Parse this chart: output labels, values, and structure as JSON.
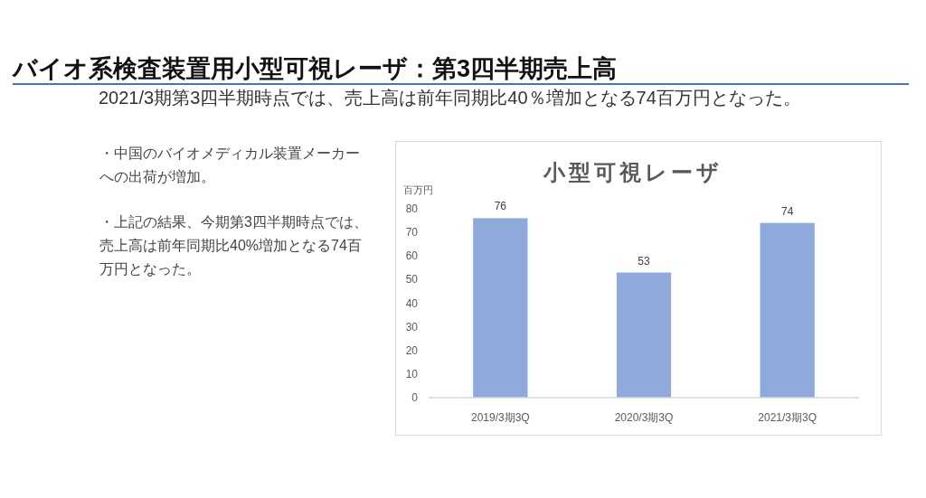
{
  "chart_data": {
    "type": "bar",
    "title": "小型可視レーザ",
    "ylabel": "百万円",
    "categories": [
      "2019/3期3Q",
      "2020/3期3Q",
      "2021/3期3Q"
    ],
    "values": [
      76,
      53,
      74
    ],
    "color": "#8eaadb",
    "ylim": [
      0,
      80
    ],
    "yticks": [
      0,
      10,
      20,
      30,
      40,
      50,
      60,
      70,
      80
    ],
    "data_labels": true,
    "annotations": [
      "バイオ系検査装置用小型可視レーザ：第3四半期売上高",
      "2021/3期第3四半期時点では、売上高は前年同期比40％増加となる74百万円となった。",
      "・中国のバイオメディカル装置メーカーへの出荷が増加。",
      "・上記の結果、今期第3四半期時点では、売上高は前年同期比40%増加となる74百万円となった。"
    ]
  }
}
